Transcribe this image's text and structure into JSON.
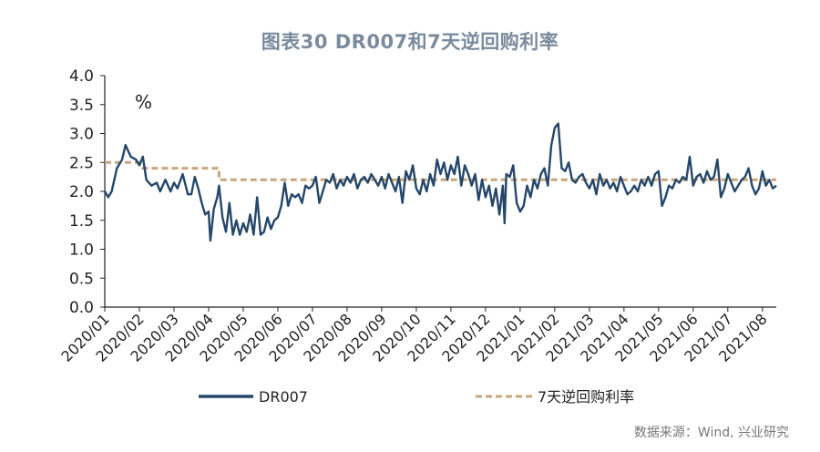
{
  "chart_data": {
    "type": "line",
    "title": "图表30  DR007和7天逆回购利率",
    "ylabel": "%",
    "ylim": [
      0,
      4
    ],
    "yticks": [
      "0.0",
      "0.5",
      "1.0",
      "1.5",
      "2.0",
      "2.5",
      "3.0",
      "3.5",
      "4.0"
    ],
    "categories": [
      "2020/01",
      "2020/02",
      "2020/03",
      "2020/04",
      "2020/05",
      "2020/06",
      "2020/07",
      "2020/08",
      "2020/09",
      "2020/10",
      "2020/11",
      "2020/12",
      "2021/01",
      "2021/02",
      "2021/03",
      "2021/04",
      "2021/05",
      "2021/06",
      "2021/07",
      "2021/08"
    ],
    "legend_position": "bottom",
    "series": [
      {
        "name": "DR007",
        "color": "#24476b",
        "style": "solid",
        "values": [
          [
            0,
            2.0
          ],
          [
            0.1,
            1.9
          ],
          [
            0.2,
            2.0
          ],
          [
            0.35,
            2.4
          ],
          [
            0.5,
            2.55
          ],
          [
            0.6,
            2.8
          ],
          [
            0.75,
            2.6
          ],
          [
            0.9,
            2.55
          ],
          [
            1.0,
            2.45
          ],
          [
            1.1,
            2.6
          ],
          [
            1.2,
            2.2
          ],
          [
            1.35,
            2.1
          ],
          [
            1.5,
            2.15
          ],
          [
            1.6,
            2.0
          ],
          [
            1.75,
            2.2
          ],
          [
            1.9,
            2.0
          ],
          [
            2.0,
            2.15
          ],
          [
            2.1,
            2.05
          ],
          [
            2.25,
            2.3
          ],
          [
            2.4,
            1.95
          ],
          [
            2.5,
            1.95
          ],
          [
            2.6,
            2.25
          ],
          [
            2.7,
            2.05
          ],
          [
            2.8,
            1.8
          ],
          [
            2.9,
            1.6
          ],
          [
            3.0,
            1.65
          ],
          [
            3.05,
            1.15
          ],
          [
            3.15,
            1.7
          ],
          [
            3.25,
            1.9
          ],
          [
            3.3,
            2.1
          ],
          [
            3.4,
            1.55
          ],
          [
            3.5,
            1.3
          ],
          [
            3.6,
            1.8
          ],
          [
            3.7,
            1.25
          ],
          [
            3.8,
            1.5
          ],
          [
            3.9,
            1.25
          ],
          [
            4.0,
            1.45
          ],
          [
            4.1,
            1.3
          ],
          [
            4.2,
            1.6
          ],
          [
            4.3,
            1.25
          ],
          [
            4.4,
            1.9
          ],
          [
            4.5,
            1.25
          ],
          [
            4.6,
            1.3
          ],
          [
            4.7,
            1.55
          ],
          [
            4.8,
            1.35
          ],
          [
            4.9,
            1.5
          ],
          [
            5.0,
            1.55
          ],
          [
            5.1,
            1.75
          ],
          [
            5.2,
            2.15
          ],
          [
            5.3,
            1.75
          ],
          [
            5.4,
            1.95
          ],
          [
            5.5,
            1.9
          ],
          [
            5.6,
            1.95
          ],
          [
            5.7,
            1.8
          ],
          [
            5.8,
            2.1
          ],
          [
            5.9,
            2.05
          ],
          [
            6.0,
            2.1
          ],
          [
            6.1,
            2.25
          ],
          [
            6.2,
            1.8
          ],
          [
            6.3,
            2.0
          ],
          [
            6.4,
            2.2
          ],
          [
            6.5,
            2.15
          ],
          [
            6.6,
            2.3
          ],
          [
            6.7,
            2.05
          ],
          [
            6.8,
            2.2
          ],
          [
            6.9,
            2.1
          ],
          [
            7.0,
            2.25
          ],
          [
            7.1,
            2.15
          ],
          [
            7.2,
            2.3
          ],
          [
            7.3,
            2.05
          ],
          [
            7.4,
            2.2
          ],
          [
            7.5,
            2.25
          ],
          [
            7.6,
            2.15
          ],
          [
            7.7,
            2.3
          ],
          [
            7.8,
            2.2
          ],
          [
            7.9,
            2.1
          ],
          [
            8.0,
            2.25
          ],
          [
            8.1,
            2.05
          ],
          [
            8.2,
            2.3
          ],
          [
            8.3,
            2.15
          ],
          [
            8.4,
            2.0
          ],
          [
            8.5,
            2.25
          ],
          [
            8.6,
            1.8
          ],
          [
            8.7,
            2.35
          ],
          [
            8.8,
            2.2
          ],
          [
            8.9,
            2.45
          ],
          [
            9.0,
            2.05
          ],
          [
            9.1,
            1.95
          ],
          [
            9.2,
            2.2
          ],
          [
            9.3,
            2.0
          ],
          [
            9.4,
            2.3
          ],
          [
            9.5,
            2.1
          ],
          [
            9.6,
            2.55
          ],
          [
            9.7,
            2.3
          ],
          [
            9.8,
            2.5
          ],
          [
            9.9,
            2.2
          ],
          [
            10.0,
            2.45
          ],
          [
            10.1,
            2.3
          ],
          [
            10.2,
            2.6
          ],
          [
            10.3,
            2.1
          ],
          [
            10.4,
            2.45
          ],
          [
            10.5,
            2.3
          ],
          [
            10.6,
            2.1
          ],
          [
            10.7,
            2.3
          ],
          [
            10.8,
            1.85
          ],
          [
            10.9,
            2.2
          ],
          [
            11.0,
            1.9
          ],
          [
            11.1,
            2.1
          ],
          [
            11.2,
            1.75
          ],
          [
            11.3,
            2.05
          ],
          [
            11.4,
            1.6
          ],
          [
            11.5,
            2.1
          ],
          [
            11.55,
            1.45
          ],
          [
            11.6,
            2.3
          ],
          [
            11.7,
            2.25
          ],
          [
            11.8,
            2.45
          ],
          [
            11.9,
            1.8
          ],
          [
            12.0,
            1.65
          ],
          [
            12.1,
            1.75
          ],
          [
            12.2,
            2.1
          ],
          [
            12.3,
            1.9
          ],
          [
            12.4,
            2.2
          ],
          [
            12.5,
            2.05
          ],
          [
            12.6,
            2.3
          ],
          [
            12.7,
            2.4
          ],
          [
            12.8,
            2.1
          ],
          [
            12.9,
            2.8
          ],
          [
            13.0,
            3.1
          ],
          [
            13.1,
            3.17
          ],
          [
            13.2,
            2.4
          ],
          [
            13.3,
            2.35
          ],
          [
            13.4,
            2.5
          ],
          [
            13.5,
            2.2
          ],
          [
            13.6,
            2.15
          ],
          [
            13.7,
            2.25
          ],
          [
            13.8,
            2.3
          ],
          [
            13.9,
            2.15
          ],
          [
            14.0,
            2.05
          ],
          [
            14.1,
            2.2
          ],
          [
            14.2,
            1.95
          ],
          [
            14.3,
            2.3
          ],
          [
            14.4,
            2.1
          ],
          [
            14.5,
            2.2
          ],
          [
            14.6,
            2.05
          ],
          [
            14.7,
            2.15
          ],
          [
            14.8,
            2.0
          ],
          [
            14.9,
            2.25
          ],
          [
            15.0,
            2.1
          ],
          [
            15.1,
            1.95
          ],
          [
            15.2,
            2.0
          ],
          [
            15.3,
            2.1
          ],
          [
            15.4,
            2.0
          ],
          [
            15.5,
            2.2
          ],
          [
            15.6,
            2.1
          ],
          [
            15.7,
            2.25
          ],
          [
            15.8,
            2.1
          ],
          [
            15.9,
            2.3
          ],
          [
            16.0,
            2.35
          ],
          [
            16.1,
            1.75
          ],
          [
            16.2,
            1.9
          ],
          [
            16.3,
            2.1
          ],
          [
            16.4,
            2.05
          ],
          [
            16.5,
            2.2
          ],
          [
            16.6,
            2.15
          ],
          [
            16.7,
            2.25
          ],
          [
            16.8,
            2.2
          ],
          [
            16.9,
            2.6
          ],
          [
            17.0,
            2.1
          ],
          [
            17.1,
            2.25
          ],
          [
            17.2,
            2.3
          ],
          [
            17.3,
            2.15
          ],
          [
            17.4,
            2.35
          ],
          [
            17.5,
            2.2
          ],
          [
            17.6,
            2.25
          ],
          [
            17.7,
            2.55
          ],
          [
            17.8,
            1.9
          ],
          [
            17.9,
            2.05
          ],
          [
            18.0,
            2.3
          ],
          [
            18.1,
            2.15
          ],
          [
            18.2,
            2.0
          ],
          [
            18.3,
            2.1
          ],
          [
            18.4,
            2.2
          ],
          [
            18.5,
            2.25
          ],
          [
            18.6,
            2.4
          ],
          [
            18.7,
            2.1
          ],
          [
            18.8,
            1.95
          ],
          [
            18.9,
            2.05
          ],
          [
            19.0,
            2.35
          ],
          [
            19.1,
            2.1
          ],
          [
            19.2,
            2.2
          ],
          [
            19.3,
            2.05
          ],
          [
            19.4,
            2.1
          ]
        ]
      },
      {
        "name": "7天逆回购利率",
        "color": "#c9a67b",
        "style": "dashed",
        "values": [
          [
            0,
            2.5
          ],
          [
            1.0,
            2.5
          ],
          [
            1.1,
            2.4
          ],
          [
            3.3,
            2.4
          ],
          [
            3.3,
            2.2
          ],
          [
            19.4,
            2.2
          ]
        ]
      }
    ]
  },
  "source": "数据来源：Wind, 兴业研究"
}
